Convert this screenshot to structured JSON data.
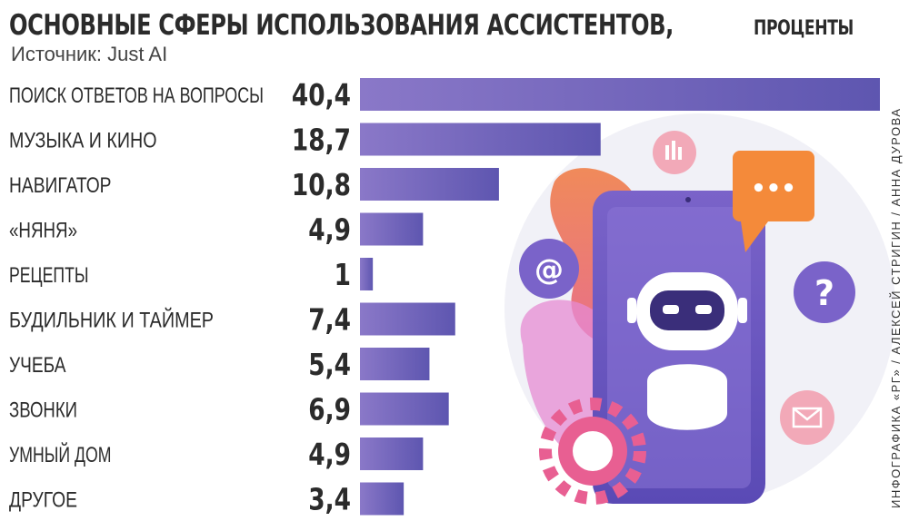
{
  "title": "ОСНОВНЫЕ СФЕРЫ ИСПОЛЬЗОВАНИЯ АССИСТЕНТОВ,",
  "title_unit": "проценты",
  "source": "Источник: Just AI",
  "credit": "ИНФОГРАФИКА «РГ» / АЛЕКСЕЙ СТРИГИН / АННА ДУРОВА",
  "colors": {
    "bar_left": "#8a78c8",
    "bar_right": "#5e56b0",
    "text": "#2b2b2b"
  },
  "illustration": {
    "bubble_text": "•••",
    "at_icon": "@",
    "question_icon": "?"
  },
  "chart_data": {
    "type": "bar",
    "orientation": "horizontal",
    "categories": [
      "ПОИСК ОТВЕТОВ НА ВОПРОСЫ",
      "МУЗЫКА И КИНО",
      "НАВИГАТОР",
      "«НЯНЯ»",
      "РЕЦЕПТЫ",
      "БУДИЛЬНИК И ТАЙМЕР",
      "УЧЕБА",
      "ЗВОНКИ",
      "УМНЫЙ ДОМ",
      "ДРУГОЕ"
    ],
    "values": [
      40.4,
      18.7,
      10.8,
      4.9,
      1,
      7.4,
      5.4,
      6.9,
      4.9,
      3.4
    ],
    "value_labels": [
      "40,4",
      "18,7",
      "10,8",
      "4,9",
      "1",
      "7,4",
      "5,4",
      "6,9",
      "4,9",
      "3,4"
    ],
    "xlim": [
      0,
      40.4
    ]
  }
}
